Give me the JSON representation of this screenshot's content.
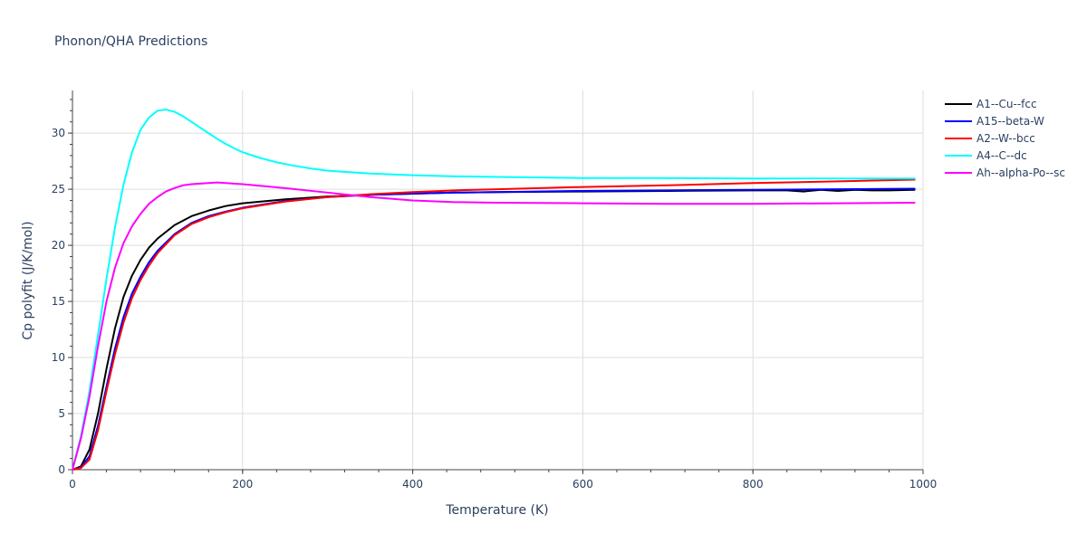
{
  "chart_data": {
    "type": "line",
    "title": "Phonon/QHA Predictions",
    "xlabel": "Temperature (K)",
    "ylabel": "Cp polyfit (J/K/mol)",
    "xlim": [
      0,
      1000
    ],
    "ylim": [
      0,
      33.8
    ],
    "x_ticks": [
      0,
      200,
      400,
      600,
      800,
      1000
    ],
    "y_ticks": [
      0,
      5,
      10,
      15,
      20,
      25,
      30
    ],
    "x_tick_labels": [
      "0",
      "200",
      "400",
      "600",
      "800",
      "1000"
    ],
    "y_tick_labels": [
      "0",
      "5",
      "10",
      "15",
      "20",
      "25",
      "30"
    ],
    "grid": true,
    "legend_position": "right",
    "series": [
      {
        "name": "A1--Cu--fcc",
        "color": "#000000",
        "x": [
          0,
          10,
          20,
          30,
          40,
          50,
          60,
          70,
          80,
          90,
          100,
          120,
          140,
          160,
          180,
          200,
          250,
          300,
          350,
          400,
          450,
          500,
          600,
          700,
          800,
          840,
          860,
          880,
          900,
          920,
          940,
          960,
          990
        ],
        "y": [
          0,
          0.3,
          1.8,
          5.0,
          9.0,
          12.6,
          15.4,
          17.3,
          18.7,
          19.8,
          20.6,
          21.8,
          22.6,
          23.1,
          23.5,
          23.75,
          24.1,
          24.35,
          24.5,
          24.6,
          24.7,
          24.75,
          24.8,
          24.85,
          24.9,
          24.9,
          24.8,
          24.95,
          24.85,
          24.95,
          24.9,
          24.9,
          24.95
        ]
      },
      {
        "name": "A15--beta-W",
        "color": "#0000ff",
        "x": [
          0,
          10,
          20,
          30,
          40,
          50,
          60,
          70,
          80,
          90,
          100,
          120,
          140,
          160,
          180,
          200,
          250,
          300,
          350,
          400,
          450,
          500,
          600,
          700,
          800,
          900,
          990
        ],
        "y": [
          0,
          0.2,
          1.2,
          3.9,
          7.4,
          10.8,
          13.6,
          15.7,
          17.2,
          18.5,
          19.5,
          21.0,
          22.0,
          22.6,
          23.0,
          23.35,
          23.95,
          24.3,
          24.5,
          24.6,
          24.7,
          24.75,
          24.85,
          24.9,
          24.95,
          25.0,
          25.05
        ]
      },
      {
        "name": "A2--W--bcc",
        "color": "#ff0000",
        "x": [
          0,
          10,
          20,
          30,
          40,
          50,
          60,
          70,
          80,
          90,
          100,
          120,
          140,
          160,
          180,
          200,
          250,
          300,
          350,
          400,
          450,
          500,
          600,
          700,
          800,
          900,
          990
        ],
        "y": [
          0,
          0.15,
          0.9,
          3.5,
          7.0,
          10.3,
          13.1,
          15.3,
          16.9,
          18.2,
          19.3,
          20.9,
          21.9,
          22.5,
          22.95,
          23.3,
          23.9,
          24.3,
          24.55,
          24.75,
          24.9,
          25.0,
          25.2,
          25.35,
          25.55,
          25.7,
          25.85
        ]
      },
      {
        "name": "A4--C--dc",
        "color": "#00ffff",
        "x": [
          0,
          5,
          10,
          20,
          30,
          40,
          50,
          60,
          70,
          80,
          90,
          100,
          110,
          120,
          130,
          140,
          150,
          160,
          170,
          180,
          190,
          200,
          220,
          240,
          260,
          280,
          300,
          350,
          400,
          450,
          500,
          600,
          700,
          800,
          900,
          990
        ],
        "y": [
          0,
          1.5,
          3.0,
          7.0,
          12.0,
          17.0,
          21.6,
          25.4,
          28.3,
          30.3,
          31.4,
          32.0,
          32.1,
          31.9,
          31.5,
          31.0,
          30.5,
          30.0,
          29.5,
          29.05,
          28.65,
          28.3,
          27.8,
          27.4,
          27.1,
          26.85,
          26.65,
          26.4,
          26.25,
          26.15,
          26.1,
          26.0,
          26.0,
          25.95,
          25.95,
          25.95
        ]
      },
      {
        "name": "Ah--alpha-Po--sc",
        "color": "#ff00ff",
        "x": [
          0,
          5,
          10,
          20,
          30,
          40,
          50,
          60,
          70,
          80,
          90,
          100,
          110,
          120,
          130,
          140,
          150,
          160,
          170,
          180,
          200,
          250,
          300,
          350,
          400,
          450,
          500,
          600,
          700,
          800,
          900,
          990
        ],
        "y": [
          0,
          1.4,
          2.8,
          6.5,
          11.0,
          15.0,
          18.0,
          20.2,
          21.7,
          22.8,
          23.7,
          24.3,
          24.8,
          25.1,
          25.35,
          25.45,
          25.5,
          25.55,
          25.6,
          25.55,
          25.45,
          25.1,
          24.7,
          24.3,
          24.0,
          23.85,
          23.8,
          23.75,
          23.7,
          23.7,
          23.75,
          23.8
        ]
      }
    ]
  }
}
